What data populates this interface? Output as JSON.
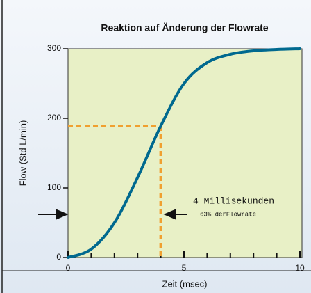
{
  "chart_data": {
    "type": "line",
    "title": "Reaktion auf Änderung der Flowrate",
    "xlabel": "Zeit (msec)",
    "ylabel": "Flow (Std L/min)",
    "x": [
      0,
      1,
      2,
      3,
      4,
      5,
      6,
      7,
      8,
      9,
      10
    ],
    "series": [
      {
        "name": "Flow",
        "color": "#00698f",
        "values": [
          0,
          12,
          50,
          115,
          189,
          250,
          280,
          292,
          297,
          299,
          300
        ]
      }
    ],
    "xlim": [
      0,
      10
    ],
    "ylim": [
      0,
      300
    ],
    "xticks": [
      0,
      5,
      10
    ],
    "xminorticks": [
      1,
      2,
      3,
      4,
      6,
      7,
      8,
      9
    ],
    "yticks": [
      0,
      100,
      200,
      300
    ],
    "marker": {
      "x": 4,
      "y": 189,
      "color": "#f0a030"
    },
    "annotations": [
      "4 Millisekunden",
      "63% derFlowrate"
    ]
  }
}
